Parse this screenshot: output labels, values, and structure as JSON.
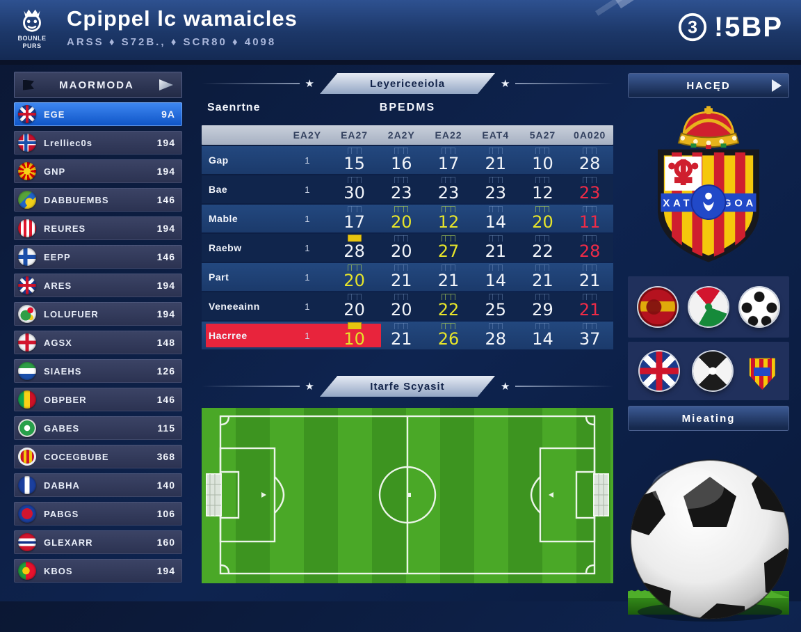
{
  "header": {
    "logo_caption": "BOUNLE\nPURS",
    "title": "Cpippel lc wamaicles",
    "subtitle": "ARSS ♦ S72B., ♦ SCR80 ♦ 4098",
    "brand": "!5BP",
    "brand_glyph": "3"
  },
  "icons": {
    "star": "★",
    "play": "▶"
  },
  "sidebar": {
    "title": "MAORMODA",
    "rows": [
      {
        "name": "EGE",
        "value": "9A",
        "icon": "flag-uk",
        "selected": true
      },
      {
        "name": "Lrelliec0s",
        "value": "194",
        "icon": "flag-norway"
      },
      {
        "name": "GNP",
        "value": "194",
        "icon": "flag-macedonia"
      },
      {
        "name": "DABBUEMBS",
        "value": "146",
        "icon": "ball-brazil"
      },
      {
        "name": "REURES",
        "value": "194",
        "icon": "flag-stripes-red"
      },
      {
        "name": "EEPP",
        "value": "146",
        "icon": "flag-finland"
      },
      {
        "name": "ARES",
        "value": "194",
        "icon": "flag-uk"
      },
      {
        "name": "LOLUFUER",
        "value": "194",
        "icon": "crest-green"
      },
      {
        "name": "AGSX",
        "value": "148",
        "icon": "flag-england"
      },
      {
        "name": "SIAEHS",
        "value": "126",
        "icon": "flag-tricolor-h"
      },
      {
        "name": "OBPBER",
        "value": "146",
        "icon": "flag-mali"
      },
      {
        "name": "GABES",
        "value": "115",
        "icon": "swirl-green"
      },
      {
        "name": "COCEGBUBE",
        "value": "368",
        "icon": "crest-aragon"
      },
      {
        "name": "DABHA",
        "value": "140",
        "icon": "flag-blue-white"
      },
      {
        "name": "PABGS",
        "value": "106",
        "icon": "crest-red-blue"
      },
      {
        "name": "GLEXARR",
        "value": "160",
        "icon": "flag-austria"
      },
      {
        "name": "KBOS",
        "value": "194",
        "icon": "flag-portugal"
      }
    ]
  },
  "main": {
    "banner_top": "Leyericeeiola",
    "label_left": "Saenrtne",
    "label_center": "BPEDMS",
    "columns": [
      "EA2Y",
      "EA27",
      "2A2Y",
      "EA22",
      "EAT4",
      "5A27",
      "0A020"
    ],
    "rows": [
      {
        "name": "Gap",
        "pos": "1",
        "values": [
          {
            "t": "15",
            "c": "w"
          },
          {
            "t": "16",
            "c": "w"
          },
          {
            "t": "17",
            "c": "w"
          },
          {
            "t": "21",
            "c": "w"
          },
          {
            "t": "10",
            "c": "w"
          },
          {
            "t": "28",
            "c": "w"
          }
        ]
      },
      {
        "name": "Bae",
        "pos": "1",
        "values": [
          {
            "t": "30",
            "c": "w"
          },
          {
            "t": "23",
            "c": "w"
          },
          {
            "t": "23",
            "c": "w"
          },
          {
            "t": "23",
            "c": "w"
          },
          {
            "t": "12",
            "c": "w"
          },
          {
            "t": "23",
            "c": "r"
          }
        ]
      },
      {
        "name": "Mable",
        "pos": "1",
        "values": [
          {
            "t": "17",
            "c": "w"
          },
          {
            "t": "20",
            "c": "y"
          },
          {
            "t": "12",
            "c": "y"
          },
          {
            "t": "14",
            "c": "w"
          },
          {
            "t": "20",
            "c": "y"
          },
          {
            "t": "11",
            "c": "r"
          }
        ]
      },
      {
        "name": "Raebw",
        "pos": "1",
        "values": [
          {
            "t": "28",
            "c": "w",
            "tab": true
          },
          {
            "t": "20",
            "c": "w"
          },
          {
            "t": "27",
            "c": "y"
          },
          {
            "t": "21",
            "c": "w"
          },
          {
            "t": "22",
            "c": "w"
          },
          {
            "t": "28",
            "c": "r"
          }
        ]
      },
      {
        "name": "Part",
        "pos": "1",
        "values": [
          {
            "t": "20",
            "c": "y"
          },
          {
            "t": "21",
            "c": "w"
          },
          {
            "t": "21",
            "c": "w"
          },
          {
            "t": "14",
            "c": "w"
          },
          {
            "t": "21",
            "c": "w"
          },
          {
            "t": "21",
            "c": "w"
          }
        ]
      },
      {
        "name": "Veneeainn",
        "pos": "1",
        "values": [
          {
            "t": "20",
            "c": "w"
          },
          {
            "t": "20",
            "c": "w"
          },
          {
            "t": "22",
            "c": "y"
          },
          {
            "t": "25",
            "c": "w"
          },
          {
            "t": "29",
            "c": "w"
          },
          {
            "t": "21",
            "c": "r"
          }
        ]
      },
      {
        "name": "Hacrree",
        "pos": "1",
        "highlight": "red",
        "values": [
          {
            "t": "10",
            "c": "y",
            "tab": true
          },
          {
            "t": "21",
            "c": "w"
          },
          {
            "t": "26",
            "c": "y"
          },
          {
            "t": "28",
            "c": "w"
          },
          {
            "t": "14",
            "c": "w"
          },
          {
            "t": "37",
            "c": "w"
          }
        ]
      }
    ],
    "banner_bottom": "Itarfe Scyasit"
  },
  "right": {
    "header_top": "HACĘD",
    "crest_band_left": "XAT",
    "crest_band_right": "GOA",
    "badges_row1": [
      "spain-badge",
      "basque-ball",
      "soccer-ball-badge"
    ],
    "badges_row2": [
      "uk-flag-badge",
      "checker-ball",
      "crest-mini"
    ],
    "header_bottom": "Mieating"
  },
  "colors": {
    "accent_blue": "#1a6be0",
    "highlight_yellow": "#e6e42a",
    "alert_red": "#ee2b47",
    "row_red_bar": "#e8243c",
    "pitch_green_light": "#4aa827",
    "pitch_green_dark": "#3d9420"
  }
}
